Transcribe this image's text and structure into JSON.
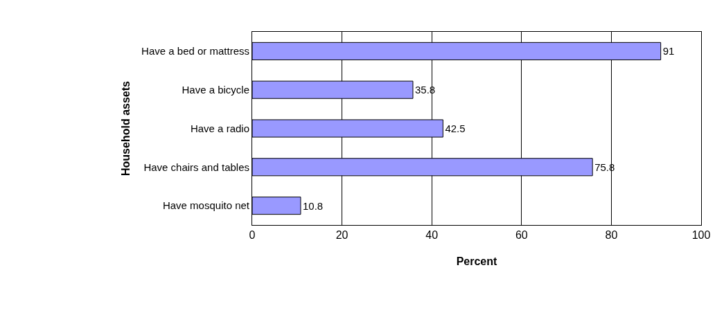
{
  "chart_data": {
    "type": "bar",
    "orientation": "horizontal",
    "xlabel": "Percent",
    "ylabel": "Household assets",
    "categories": [
      "Have a bed or mattress",
      "Have a bicycle",
      "Have a radio",
      "Have chairs and tables",
      "Have mosquito net"
    ],
    "values": [
      91,
      35.8,
      42.5,
      75.8,
      10.8
    ],
    "color": "#9999ff",
    "data_labels": true,
    "xlim": [
      0,
      100
    ],
    "xticks": [
      0,
      20,
      40,
      60,
      80,
      100
    ],
    "grid": "x"
  }
}
